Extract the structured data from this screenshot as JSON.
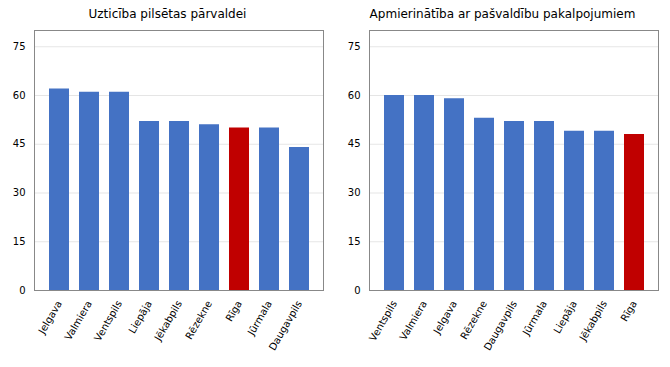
{
  "chart_data": [
    {
      "type": "bar",
      "title": "Uzticība pilsētas pārvaldei",
      "categories": [
        "Jelgava",
        "Valmiera",
        "Ventspils",
        "Liepāja",
        "Jēkabpils",
        "Rēzekne",
        "Rīga",
        "Jūrmala",
        "Daugavpils"
      ],
      "values": [
        62,
        61,
        61,
        52,
        52,
        51,
        50,
        50,
        44
      ],
      "colors": [
        "#4472C4",
        "#4472C4",
        "#4472C4",
        "#4472C4",
        "#4472C4",
        "#4472C4",
        "#C00000",
        "#4472C4",
        "#4472C4"
      ],
      "ylim": [
        0,
        80
      ],
      "yticks": [
        0,
        15,
        30,
        45,
        60,
        75
      ],
      "grid": true
    },
    {
      "type": "bar",
      "title": "Apmierinātība ar pašvaldību pakalpojumiem",
      "categories": [
        "Ventspils",
        "Valmiera",
        "Jelgava",
        "Rēzekne",
        "Daugavpils",
        "Jūrmala",
        "Liepāja",
        "Jēkabpils",
        "Rīga"
      ],
      "values": [
        60,
        60,
        59,
        53,
        52,
        52,
        49,
        49,
        48
      ],
      "colors": [
        "#4472C4",
        "#4472C4",
        "#4472C4",
        "#4472C4",
        "#4472C4",
        "#4472C4",
        "#4472C4",
        "#4472C4",
        "#C00000"
      ],
      "ylim": [
        0,
        80
      ],
      "yticks": [
        0,
        15,
        30,
        45,
        60,
        75
      ],
      "grid": true
    }
  ]
}
